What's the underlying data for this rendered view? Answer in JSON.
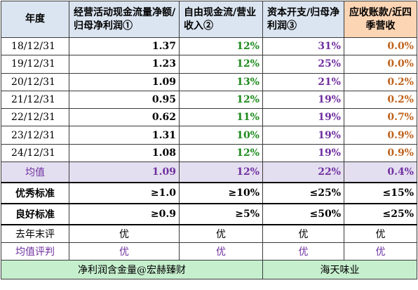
{
  "headers": {
    "year": "年度",
    "c1": "经营活动现金流量净额/归母净利润①",
    "c2": "自由现金流/营业收入②",
    "c3": "资本开支/归母净利润③",
    "c4": "应收账款/近四季营收"
  },
  "rows": [
    {
      "year": "18/12/31",
      "c1": "1.37",
      "c2": "12%",
      "c3": "31%",
      "c4": "0.0%"
    },
    {
      "year": "19/12/31",
      "c1": "1.23",
      "c2": "12%",
      "c3": "25%",
      "c4": "0.0%"
    },
    {
      "year": "20/12/31",
      "c1": "1.09",
      "c2": "13%",
      "c3": "21%",
      "c4": "0.2%"
    },
    {
      "year": "21/12/31",
      "c1": "0.95",
      "c2": "12%",
      "c3": "19%",
      "c4": "0.2%"
    },
    {
      "year": "22/12/31",
      "c1": "0.62",
      "c2": "11%",
      "c3": "19%",
      "c4": "0.7%"
    },
    {
      "year": "23/12/31",
      "c1": "1.31",
      "c2": "10%",
      "c3": "19%",
      "c4": "0.9%"
    },
    {
      "year": "24/12/31",
      "c1": "1.08",
      "c2": "12%",
      "c3": "19%",
      "c4": "0.9%"
    }
  ],
  "average": {
    "label": "均值",
    "c1": "1.09",
    "c2": "12%",
    "c3": "22%",
    "c4": "0.4%"
  },
  "excellent": {
    "label": "优秀标准",
    "c1": "≥1.0",
    "c2": "≥10%",
    "c3": "≤25%",
    "c4": "≤15%"
  },
  "good": {
    "label": "良好标准",
    "c1": "≥0.9",
    "c2": "≥5%",
    "c3": "≤50%",
    "c4": "≤25%"
  },
  "last_year_eval": {
    "label": "去年末评",
    "c1": "优",
    "c2": "优",
    "c3": "优",
    "c4": "优"
  },
  "avg_eval": {
    "label": "均值评判",
    "c1": "优",
    "c2": "优",
    "c3": "优",
    "c4": "优"
  },
  "footer": {
    "left": "净利润含金量@宏赫臻财",
    "right": "海天味业"
  },
  "colors": {
    "header_bg": "#dbe5f1",
    "header_last_bg": "#fcd5b4",
    "avg_bg": "#e4dff0",
    "footer_bg": "#c6efce",
    "green_text": "#1e8a1e",
    "purple_text": "#7030a0",
    "orange_text": "#c0621b"
  }
}
